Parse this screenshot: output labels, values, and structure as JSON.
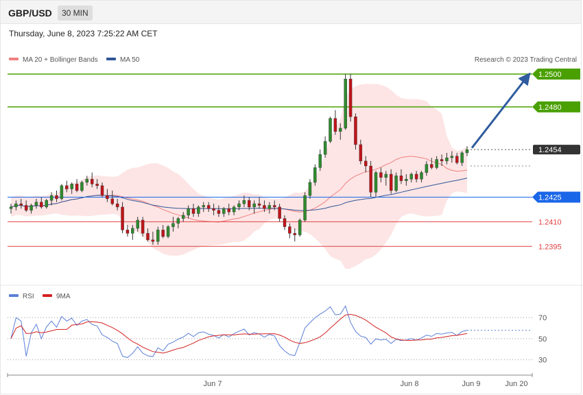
{
  "header": {
    "symbol": "GBP/USD",
    "timeframe": "30 MIN"
  },
  "datetime": "Thursday, June 8, 2023 7:25:22 AM CET",
  "legend": {
    "ma20": {
      "label": "MA 20 + Bollinger Bands",
      "color": "#f08080"
    },
    "ma50": {
      "label": "MA 50",
      "color": "#2f5597"
    },
    "credit": "Research © 2023 Trading Central"
  },
  "rsi_legend": {
    "rsi": {
      "label": "RSI",
      "color": "#5b7fd6"
    },
    "ma9": {
      "label": "9MA",
      "color": "#d42020"
    }
  },
  "x_axis": {
    "labels": [
      "Jun 7",
      "Jun 8",
      "Jun 9",
      "Jun 20"
    ]
  },
  "chart_data": [
    {
      "type": "candlestick",
      "title": "GBP/USD",
      "ylim": [
        1.2378,
        1.2505
      ],
      "levels": [
        {
          "value": 1.25,
          "label": "1.2500",
          "color": "#4aa000",
          "kind": "resistance"
        },
        {
          "value": 1.248,
          "label": "1.2480",
          "color": "#4aa000",
          "kind": "resistance"
        },
        {
          "value": 1.2454,
          "label": "1.2454",
          "color": "#333333",
          "kind": "last"
        },
        {
          "value": 1.2425,
          "label": "1.2425",
          "color": "#1a66e8",
          "kind": "pivot"
        },
        {
          "value": 1.241,
          "label": "1.2410",
          "color": "#e04040",
          "kind": "support"
        },
        {
          "value": 1.2395,
          "label": "1.2395",
          "color": "#e04040",
          "kind": "support"
        }
      ],
      "candles": [
        [
          1.2418,
          1.2421,
          1.2415,
          1.2419
        ],
        [
          1.2419,
          1.2423,
          1.2417,
          1.2421
        ],
        [
          1.2421,
          1.2424,
          1.2418,
          1.242
        ],
        [
          1.242,
          1.2423,
          1.2416,
          1.2417
        ],
        [
          1.2417,
          1.2421,
          1.2415,
          1.242
        ],
        [
          1.242,
          1.2424,
          1.2418,
          1.2422
        ],
        [
          1.2422,
          1.2425,
          1.2418,
          1.2419
        ],
        [
          1.2419,
          1.2424,
          1.2418,
          1.2423
        ],
        [
          1.2423,
          1.2428,
          1.242,
          1.2426
        ],
        [
          1.2426,
          1.2429,
          1.2422,
          1.2424
        ],
        [
          1.2424,
          1.2433,
          1.2423,
          1.2432
        ],
        [
          1.2432,
          1.2435,
          1.2428,
          1.243
        ],
        [
          1.243,
          1.2434,
          1.2427,
          1.2433
        ],
        [
          1.2433,
          1.2436,
          1.2428,
          1.2429
        ],
        [
          1.2429,
          1.2435,
          1.2428,
          1.2434
        ],
        [
          1.2434,
          1.2438,
          1.2432,
          1.2436
        ],
        [
          1.2436,
          1.244,
          1.2431,
          1.2433
        ],
        [
          1.2433,
          1.2436,
          1.243,
          1.2432
        ],
        [
          1.2432,
          1.2434,
          1.2425,
          1.2426
        ],
        [
          1.2426,
          1.243,
          1.2422,
          1.2424
        ],
        [
          1.2424,
          1.2429,
          1.242,
          1.2421
        ],
        [
          1.2421,
          1.2424,
          1.2417,
          1.2419
        ],
        [
          1.2419,
          1.2422,
          1.2403,
          1.2405
        ],
        [
          1.2405,
          1.2408,
          1.2401,
          1.2403
        ],
        [
          1.2403,
          1.2408,
          1.2399,
          1.2406
        ],
        [
          1.2406,
          1.2413,
          1.2404,
          1.2411
        ],
        [
          1.2411,
          1.2413,
          1.2401,
          1.2403
        ],
        [
          1.2403,
          1.2406,
          1.2398,
          1.2399
        ],
        [
          1.2399,
          1.2404,
          1.2396,
          1.2398
        ],
        [
          1.2398,
          1.2407,
          1.2396,
          1.2405
        ],
        [
          1.2405,
          1.2408,
          1.24,
          1.2401
        ],
        [
          1.2401,
          1.2408,
          1.24,
          1.2407
        ],
        [
          1.2407,
          1.2413,
          1.2404,
          1.2409
        ],
        [
          1.2409,
          1.2413,
          1.2406,
          1.2412
        ],
        [
          1.2412,
          1.2416,
          1.241,
          1.2414
        ],
        [
          1.2414,
          1.242,
          1.2412,
          1.2418
        ],
        [
          1.2418,
          1.2421,
          1.2413,
          1.2415
        ],
        [
          1.2415,
          1.242,
          1.2413,
          1.2419
        ],
        [
          1.2419,
          1.2422,
          1.2416,
          1.242
        ],
        [
          1.242,
          1.2422,
          1.2416,
          1.2418
        ],
        [
          1.2418,
          1.2421,
          1.2414,
          1.2417
        ],
        [
          1.2417,
          1.242,
          1.2413,
          1.2415
        ],
        [
          1.2415,
          1.2419,
          1.2413,
          1.2418
        ],
        [
          1.2418,
          1.2421,
          1.2414,
          1.2416
        ],
        [
          1.2416,
          1.242,
          1.2414,
          1.2419
        ],
        [
          1.2419,
          1.2423,
          1.2417,
          1.2421
        ],
        [
          1.2421,
          1.2426,
          1.2419,
          1.2423
        ],
        [
          1.2423,
          1.2425,
          1.2417,
          1.2419
        ],
        [
          1.2419,
          1.2423,
          1.2415,
          1.2421
        ],
        [
          1.2421,
          1.2425,
          1.2418,
          1.242
        ],
        [
          1.242,
          1.2423,
          1.2416,
          1.2418
        ],
        [
          1.2418,
          1.2422,
          1.2415,
          1.242
        ],
        [
          1.242,
          1.2423,
          1.2417,
          1.2419
        ],
        [
          1.2419,
          1.2421,
          1.241,
          1.2412
        ],
        [
          1.2412,
          1.2414,
          1.2405,
          1.2407
        ],
        [
          1.2407,
          1.2409,
          1.24,
          1.2403
        ],
        [
          1.2403,
          1.2406,
          1.2398,
          1.2402
        ],
        [
          1.2402,
          1.2412,
          1.2401,
          1.2411
        ],
        [
          1.2411,
          1.2428,
          1.241,
          1.2426
        ],
        [
          1.2426,
          1.2436,
          1.2424,
          1.2434
        ],
        [
          1.2434,
          1.2445,
          1.2432,
          1.2443
        ],
        [
          1.2443,
          1.2454,
          1.2441,
          1.2451
        ],
        [
          1.2451,
          1.2462,
          1.2449,
          1.2459
        ],
        [
          1.2459,
          1.2474,
          1.2458,
          1.2473
        ],
        [
          1.2473,
          1.2478,
          1.2463,
          1.2465
        ],
        [
          1.2465,
          1.247,
          1.246,
          1.2467
        ],
        [
          1.2467,
          1.25,
          1.2466,
          1.2497
        ],
        [
          1.2497,
          1.25,
          1.2471,
          1.2474
        ],
        [
          1.2474,
          1.2476,
          1.2454,
          1.2457
        ],
        [
          1.2457,
          1.246,
          1.2445,
          1.2447
        ],
        [
          1.2447,
          1.245,
          1.244,
          1.2444
        ],
        [
          1.2444,
          1.2447,
          1.2425,
          1.2428
        ],
        [
          1.2428,
          1.2441,
          1.2425,
          1.244
        ],
        [
          1.244,
          1.2443,
          1.2434,
          1.2437
        ],
        [
          1.2437,
          1.2441,
          1.2432,
          1.2439
        ],
        [
          1.2439,
          1.2442,
          1.2427,
          1.2429
        ],
        [
          1.2429,
          1.244,
          1.2428,
          1.2438
        ],
        [
          1.2438,
          1.2442,
          1.2433,
          1.2435
        ],
        [
          1.2435,
          1.2439,
          1.2432,
          1.2436
        ],
        [
          1.2436,
          1.244,
          1.2434,
          1.2439
        ],
        [
          1.2439,
          1.2441,
          1.2434,
          1.2436
        ],
        [
          1.2436,
          1.2441,
          1.2434,
          1.244
        ],
        [
          1.244,
          1.2447,
          1.2438,
          1.2445
        ],
        [
          1.2445,
          1.2449,
          1.2442,
          1.2443
        ],
        [
          1.2443,
          1.245,
          1.2442,
          1.2448
        ],
        [
          1.2448,
          1.2451,
          1.2444,
          1.2447
        ],
        [
          1.2447,
          1.2452,
          1.2445,
          1.2449
        ],
        [
          1.2449,
          1.2453,
          1.2446,
          1.245
        ],
        [
          1.245,
          1.2452,
          1.2445,
          1.2446
        ],
        [
          1.2446,
          1.2453,
          1.2444,
          1.2452
        ],
        [
          1.2452,
          1.2456,
          1.245,
          1.2454
        ]
      ]
    },
    {
      "type": "line",
      "title": "RSI",
      "ylim": [
        20,
        85
      ],
      "ticks": [
        30,
        50,
        70
      ]
    }
  ]
}
